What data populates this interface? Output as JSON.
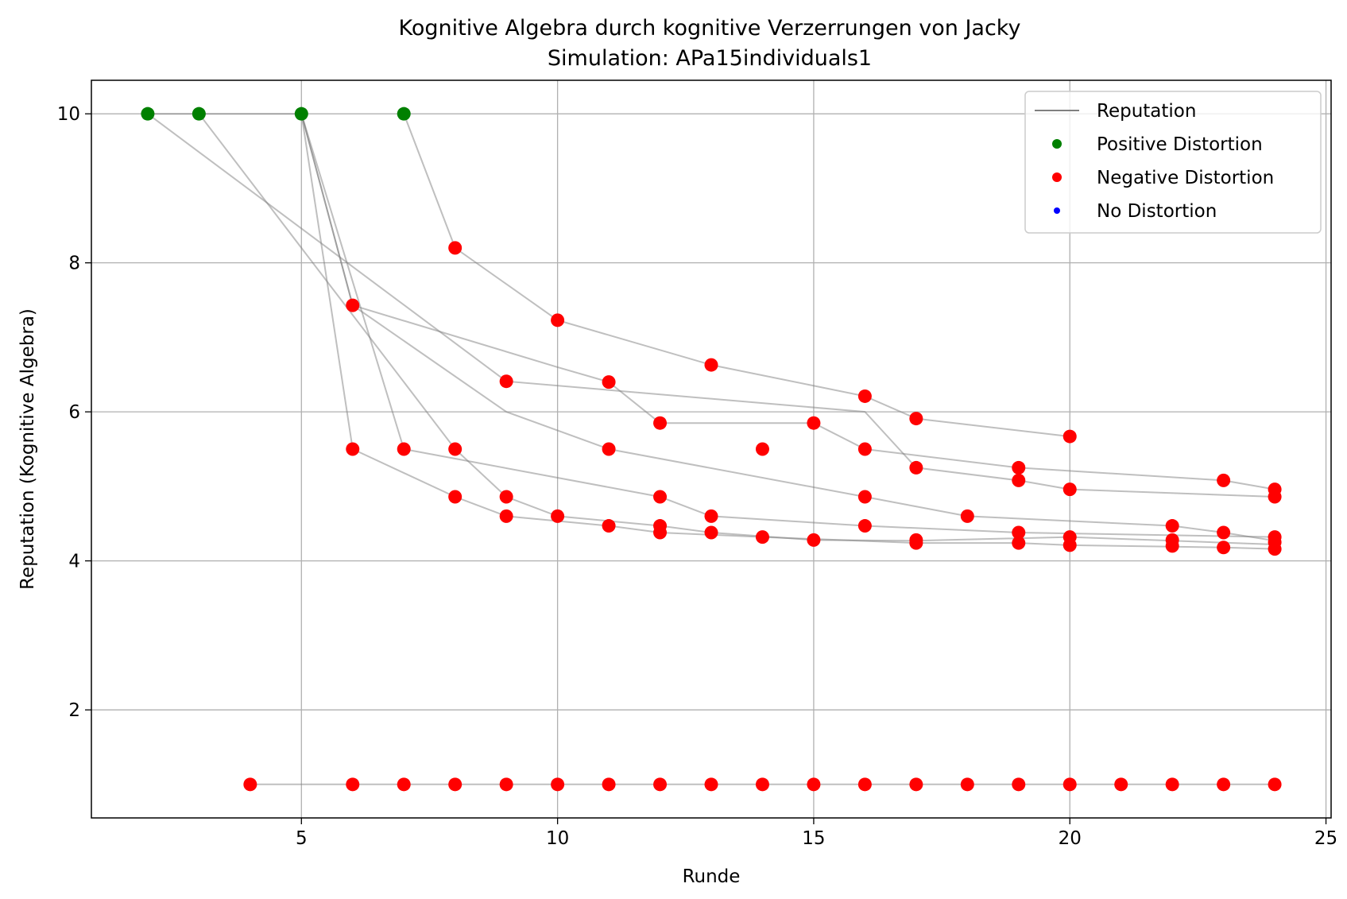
{
  "chart_data": {
    "type": "scatter",
    "title": "Kognitive Algebra durch kognitive Verzerrungen von Jacky",
    "subtitle": "Simulation: APa15individuals1",
    "xlabel": "Runde",
    "ylabel": "Reputation (Kognitive Algebra)",
    "xlim": [
      0.9,
      25.1
    ],
    "ylim": [
      0.55,
      10.45
    ],
    "xticks": [
      5,
      10,
      15,
      20,
      25
    ],
    "yticks": [
      2,
      4,
      6,
      8,
      10
    ],
    "grid": true,
    "legend_position": "top-right",
    "legend": [
      {
        "label": "Reputation",
        "kind": "line",
        "color": "#808080"
      },
      {
        "label": "Positive Distortion",
        "kind": "marker",
        "color": "#008000"
      },
      {
        "label": "Negative Distortion",
        "kind": "marker",
        "color": "#ff0000"
      },
      {
        "label": "No Distortion",
        "kind": "marker",
        "color": "#0000ff"
      }
    ],
    "colors": {
      "positive": "#008000",
      "negative": "#ff0000",
      "none": "#0000ff",
      "line": "#808080"
    },
    "series": [
      {
        "points": [
          [
            4,
            1
          ],
          [
            6,
            1
          ],
          [
            7,
            1
          ],
          [
            8,
            1
          ],
          [
            9,
            1
          ],
          [
            10,
            1
          ],
          [
            11,
            1
          ],
          [
            12,
            1
          ],
          [
            13,
            1
          ],
          [
            14,
            1
          ],
          [
            15,
            1
          ],
          [
            16,
            1
          ],
          [
            17,
            1
          ],
          [
            18,
            1
          ],
          [
            19,
            1
          ],
          [
            20,
            1
          ],
          [
            21,
            1
          ],
          [
            22,
            1
          ],
          [
            23,
            1
          ],
          [
            24,
            1
          ]
        ]
      },
      {
        "points": [
          [
            2,
            10
          ],
          [
            5,
            10
          ],
          [
            6,
            7.43
          ],
          [
            10,
            6.6
          ],
          [
            11,
            6.4
          ],
          [
            12,
            5.85
          ],
          [
            15,
            5.85
          ],
          [
            16,
            5.5
          ],
          [
            19,
            5.25
          ],
          [
            23,
            5.08
          ],
          [
            24,
            4.96
          ]
        ]
      },
      {
        "points": [
          [
            7,
            10
          ],
          [
            8,
            8.2
          ],
          [
            10,
            7.23
          ],
          [
            13,
            6.63
          ],
          [
            16,
            6.21
          ],
          [
            17,
            5.91
          ],
          [
            20,
            5.67
          ]
        ]
      },
      {
        "points": [
          [
            5,
            10
          ],
          [
            6,
            5.5
          ],
          [
            8,
            4.86
          ],
          [
            9,
            4.6
          ],
          [
            11,
            4.47
          ],
          [
            12,
            4.38
          ],
          [
            14,
            4.32
          ],
          [
            17,
            4.24
          ],
          [
            19,
            4.24
          ],
          [
            20,
            4.21
          ],
          [
            22,
            4.19
          ],
          [
            23,
            4.18
          ],
          [
            24,
            4.16
          ]
        ]
      },
      {
        "points": [
          [
            5,
            10
          ],
          [
            7,
            5.5
          ],
          [
            12,
            4.86
          ],
          [
            13,
            4.6
          ],
          [
            16,
            4.47
          ],
          [
            19,
            4.38
          ],
          [
            24,
            4.32
          ]
        ]
      },
      {
        "points": [
          [
            2,
            10
          ],
          [
            9,
            6.41
          ],
          [
            16,
            6.0
          ],
          [
            17,
            5.25
          ],
          [
            19,
            5.08
          ],
          [
            20,
            4.96
          ],
          [
            24,
            4.86
          ]
        ]
      },
      {
        "points": [
          [
            5,
            10
          ],
          [
            6,
            7.43
          ],
          [
            9,
            6.0
          ],
          [
            11,
            5.5
          ],
          [
            16,
            4.86
          ],
          [
            18,
            4.6
          ],
          [
            22,
            4.47
          ],
          [
            23,
            4.38
          ],
          [
            24,
            4.27
          ]
        ]
      },
      {
        "points": [
          [
            3,
            10
          ],
          [
            8,
            5.5
          ],
          [
            9,
            4.86
          ],
          [
            10,
            4.6
          ],
          [
            12,
            4.47
          ],
          [
            13,
            4.38
          ],
          [
            15,
            4.28
          ],
          [
            17,
            4.27
          ],
          [
            20,
            4.32
          ],
          [
            22,
            4.27
          ],
          [
            24,
            4.22
          ]
        ]
      }
    ],
    "positive_points": [
      [
        2,
        10
      ],
      [
        3,
        10
      ],
      [
        5,
        10
      ],
      [
        7,
        10
      ]
    ],
    "negative_points": [
      [
        4,
        1
      ],
      [
        6,
        1
      ],
      [
        7,
        1
      ],
      [
        8,
        1
      ],
      [
        9,
        1
      ],
      [
        10,
        1
      ],
      [
        11,
        1
      ],
      [
        12,
        1
      ],
      [
        13,
        1
      ],
      [
        14,
        1
      ],
      [
        15,
        1
      ],
      [
        16,
        1
      ],
      [
        17,
        1
      ],
      [
        18,
        1
      ],
      [
        19,
        1
      ],
      [
        20,
        1
      ],
      [
        21,
        1
      ],
      [
        22,
        1
      ],
      [
        23,
        1
      ],
      [
        24,
        1
      ],
      [
        8,
        8.2
      ],
      [
        10,
        7.23
      ],
      [
        13,
        6.63
      ],
      [
        16,
        6.21
      ],
      [
        17,
        5.91
      ],
      [
        20,
        5.67
      ],
      [
        6,
        7.43
      ],
      [
        9,
        6.41
      ],
      [
        11,
        6.4
      ],
      [
        12,
        5.85
      ],
      [
        15,
        5.85
      ],
      [
        6,
        5.5
      ],
      [
        7,
        5.5
      ],
      [
        8,
        5.5
      ],
      [
        11,
        5.5
      ],
      [
        14,
        5.5
      ],
      [
        16,
        5.5
      ],
      [
        17,
        5.25
      ],
      [
        19,
        5.25
      ],
      [
        19,
        5.08
      ],
      [
        23,
        5.08
      ],
      [
        20,
        4.96
      ],
      [
        24,
        4.96
      ],
      [
        8,
        4.86
      ],
      [
        9,
        4.86
      ],
      [
        12,
        4.86
      ],
      [
        16,
        4.86
      ],
      [
        24,
        4.86
      ],
      [
        9,
        4.6
      ],
      [
        10,
        4.6
      ],
      [
        13,
        4.6
      ],
      [
        18,
        4.6
      ],
      [
        11,
        4.47
      ],
      [
        12,
        4.47
      ],
      [
        16,
        4.47
      ],
      [
        22,
        4.47
      ],
      [
        12,
        4.38
      ],
      [
        13,
        4.38
      ],
      [
        19,
        4.38
      ],
      [
        23,
        4.38
      ],
      [
        14,
        4.32
      ],
      [
        20,
        4.32
      ],
      [
        24,
        4.32
      ],
      [
        15,
        4.28
      ],
      [
        17,
        4.28
      ],
      [
        22,
        4.28
      ],
      [
        24,
        4.25
      ],
      [
        17,
        4.24
      ],
      [
        19,
        4.24
      ],
      [
        20,
        4.21
      ],
      [
        22,
        4.2
      ],
      [
        23,
        4.18
      ],
      [
        24,
        4.16
      ]
    ]
  }
}
